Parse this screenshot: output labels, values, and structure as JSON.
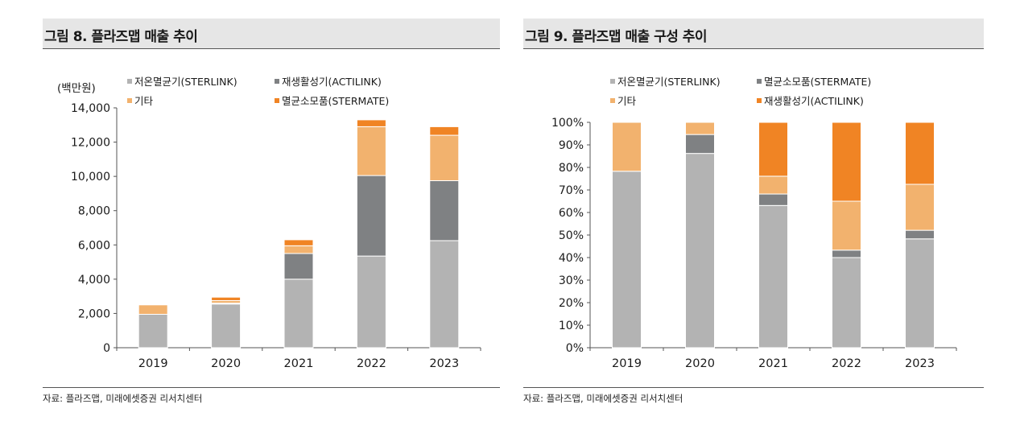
{
  "colors": {
    "sterlink": "#b3b3b3",
    "actilink": "#7f8183",
    "other": "#f2b26e",
    "stermate": "#f08424"
  },
  "left": {
    "title": "그림 8. 플라즈맵 매출 추이",
    "unit": "(백만원)",
    "source": "자료: 플라즈맵, 미래에셋증권 리서치센터"
  },
  "right": {
    "title": "그림 9.  플라즈맵 매출 구성 추이",
    "source": "자료: 플라즈맵, 미래에셋증권 리서치센터"
  },
  "chart_data": [
    {
      "type": "bar",
      "stacked": true,
      "categories": [
        "2019",
        "2020",
        "2021",
        "2022",
        "2023"
      ],
      "ylim": [
        0,
        14000
      ],
      "yticks": [
        "0",
        "2,000",
        "4,000",
        "6,000",
        "8,000",
        "10,000",
        "12,000",
        "14,000"
      ],
      "series": [
        {
          "name": "저온멸균기(STERLINK)",
          "color_key": "sterlink",
          "values": [
            1950,
            2550,
            4000,
            5350,
            6250
          ]
        },
        {
          "name": "재생활성기(ACTILINK)",
          "color_key": "actilink",
          "values": [
            0,
            50,
            1500,
            4700,
            3500
          ]
        },
        {
          "name": "기타",
          "color_key": "other",
          "values": [
            550,
            150,
            450,
            2850,
            2650
          ]
        },
        {
          "name": "멸균소모품(STERMATE)",
          "color_key": "stermate",
          "values": [
            0,
            200,
            350,
            400,
            500
          ]
        }
      ],
      "legend_order": [
        "저온멸균기(STERLINK)",
        "재생활성기(ACTILINK)",
        "기타",
        "멸균소모품(STERMATE)"
      ]
    },
    {
      "type": "bar",
      "stacked": true,
      "categories": [
        "2019",
        "2020",
        "2021",
        "2022",
        "2023"
      ],
      "ylim": [
        0,
        100
      ],
      "yticks": [
        "0%",
        "10%",
        "20%",
        "30%",
        "40%",
        "50%",
        "60%",
        "70%",
        "80%",
        "90%",
        "100%"
      ],
      "series": [
        {
          "name": "저온멸균기(STERLINK)",
          "color_key": "sterlink",
          "values": [
            78.3,
            86.2,
            63.1,
            40.0,
            48.3
          ]
        },
        {
          "name": "멸균소모품(STERMATE)",
          "color_key": "actilink",
          "values": [
            0,
            8.4,
            5.1,
            3.3,
            3.8
          ]
        },
        {
          "name": "기타",
          "color_key": "other",
          "values": [
            21.7,
            5.4,
            7.9,
            21.7,
            20.4
          ]
        },
        {
          "name": "재생활성기(ACTILINK)",
          "color_key": "stermate",
          "values": [
            0,
            0,
            23.9,
            35.0,
            27.5
          ]
        }
      ],
      "legend_order": [
        "저온멸균기(STERLINK)",
        "멸균소모품(STERMATE)",
        "기타",
        "재생활성기(ACTILINK)"
      ]
    }
  ]
}
